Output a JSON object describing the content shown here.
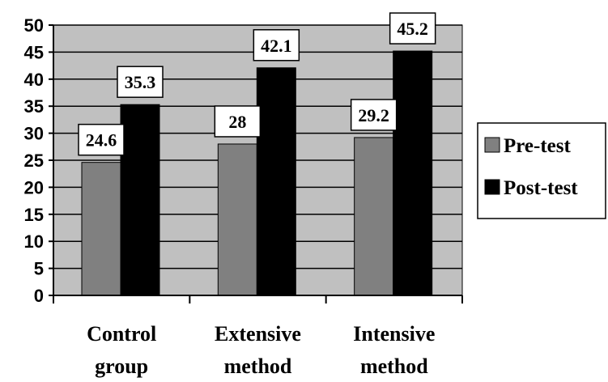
{
  "chart_data": {
    "type": "bar",
    "categories": [
      [
        "Control",
        "group"
      ],
      [
        "Extensive",
        "method"
      ],
      [
        "Intensive",
        "method"
      ]
    ],
    "series": [
      {
        "name": "Pre-test",
        "values": [
          24.6,
          28,
          29.2
        ],
        "labels": [
          "24.6",
          "28",
          "29.2"
        ],
        "color": "#808080"
      },
      {
        "name": "Post-test",
        "values": [
          35.3,
          42.1,
          45.2
        ],
        "labels": [
          "35.3",
          "42.1",
          "45.2"
        ],
        "color": "#000000"
      }
    ],
    "ylim": [
      0,
      50
    ],
    "yticks": [
      "0",
      "5",
      "10",
      "15",
      "20",
      "25",
      "30",
      "35",
      "40",
      "45",
      "50"
    ],
    "grid": true,
    "plot_background": "#c0c0c0",
    "legend_position": "right",
    "title": "",
    "xlabel": "",
    "ylabel": ""
  }
}
